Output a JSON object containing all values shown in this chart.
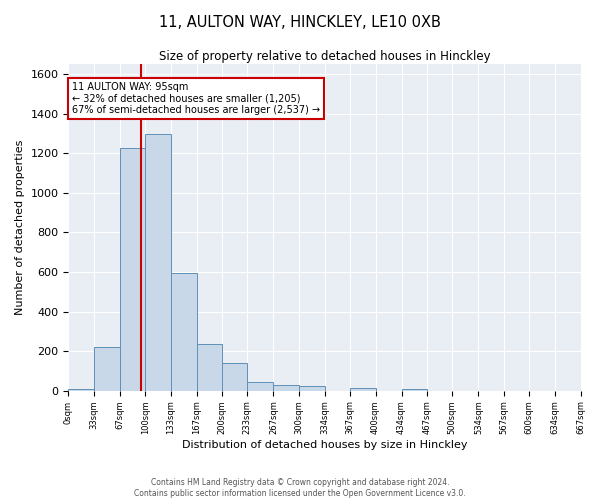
{
  "title": "11, AULTON WAY, HINCKLEY, LE10 0XB",
  "subtitle": "Size of property relative to detached houses in Hinckley",
  "xlabel": "Distribution of detached houses by size in Hinckley",
  "ylabel": "Number of detached properties",
  "bin_edges": [
    0,
    33,
    67,
    100,
    133,
    167,
    200,
    233,
    267,
    300,
    334,
    367,
    400,
    434,
    467,
    500,
    534,
    567,
    600,
    634,
    667
  ],
  "bar_heights": [
    10,
    220,
    1225,
    1295,
    595,
    235,
    140,
    45,
    30,
    25,
    0,
    15,
    0,
    10,
    0,
    0,
    0,
    0,
    0,
    0
  ],
  "bar_color": "#c8d8e8",
  "bar_edge_color": "#6090b8",
  "property_size": 95,
  "red_line_color": "#cc0000",
  "annotation_text": "11 AULTON WAY: 95sqm\n← 32% of detached houses are smaller (1,205)\n67% of semi-detached houses are larger (2,537) →",
  "annotation_box_color": "#ffffff",
  "annotation_border_color": "#cc0000",
  "ylim": [
    0,
    1650
  ],
  "yticks": [
    0,
    200,
    400,
    600,
    800,
    1000,
    1200,
    1400,
    1600
  ],
  "background_color": "#e8eef4",
  "grid_color": "#ffffff",
  "footer_line1": "Contains HM Land Registry data © Crown copyright and database right 2024.",
  "footer_line2": "Contains public sector information licensed under the Open Government Licence v3.0."
}
